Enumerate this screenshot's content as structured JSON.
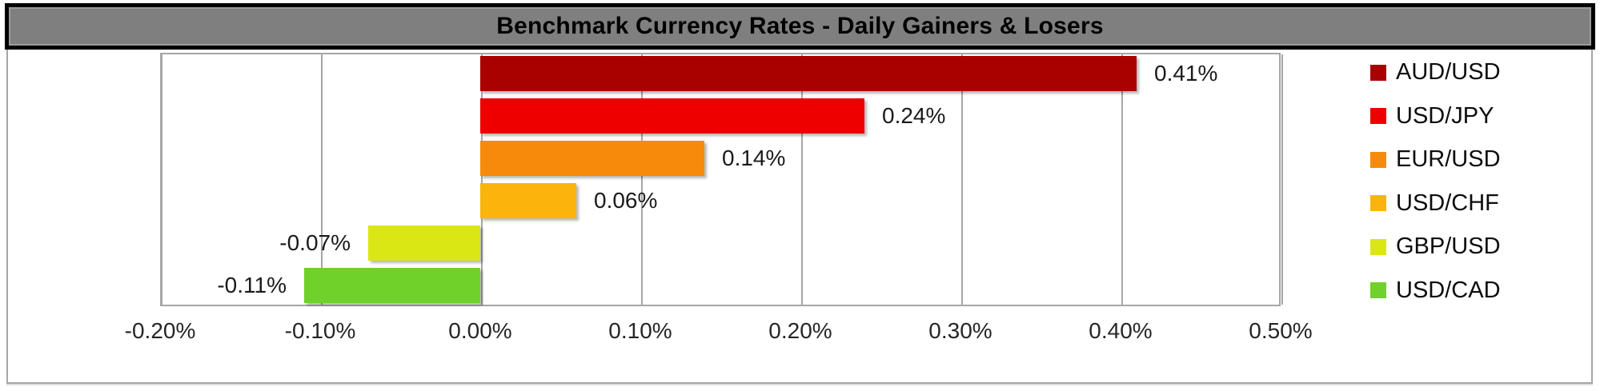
{
  "title": "Benchmark Currency Rates - Daily Gainers & Losers",
  "colors": {
    "title_bg": "#7F7F7F",
    "title_border": "#000000",
    "grid_line": "#A6A6A6",
    "outer_frame": "#A6A6A6",
    "label_text": "#1A1A1A"
  },
  "chart_data": {
    "type": "bar",
    "orientation": "horizontal",
    "title": "Benchmark Currency Rates - Daily Gainers & Losers",
    "categories": [
      "AUD/USD",
      "USD/JPY",
      "EUR/USD",
      "USD/CHF",
      "GBP/USD",
      "USD/CAD"
    ],
    "values": [
      0.41,
      0.24,
      0.14,
      0.06,
      -0.07,
      -0.11
    ],
    "value_labels": [
      "0.41%",
      "0.24%",
      "0.14%",
      "0.06%",
      "-0.07%",
      "-0.11%"
    ],
    "bar_colors": [
      "#A90000",
      "#EE0000",
      "#F78A0A",
      "#FAB40B",
      "#DBE714",
      "#71D12B"
    ],
    "xlim": [
      -0.2,
      0.5
    ],
    "x_ticks": [
      -0.2,
      -0.1,
      0.0,
      0.1,
      0.2,
      0.3,
      0.4,
      0.5
    ],
    "x_tick_labels": [
      "-0.20%",
      "-0.10%",
      "0.00%",
      "0.10%",
      "0.20%",
      "0.30%",
      "0.40%",
      "0.50%"
    ],
    "grid": true,
    "legend_position": "right",
    "legend_entries": [
      "AUD/USD",
      "USD/JPY",
      "EUR/USD",
      "USD/CHF",
      "GBP/USD",
      "USD/CAD"
    ]
  }
}
